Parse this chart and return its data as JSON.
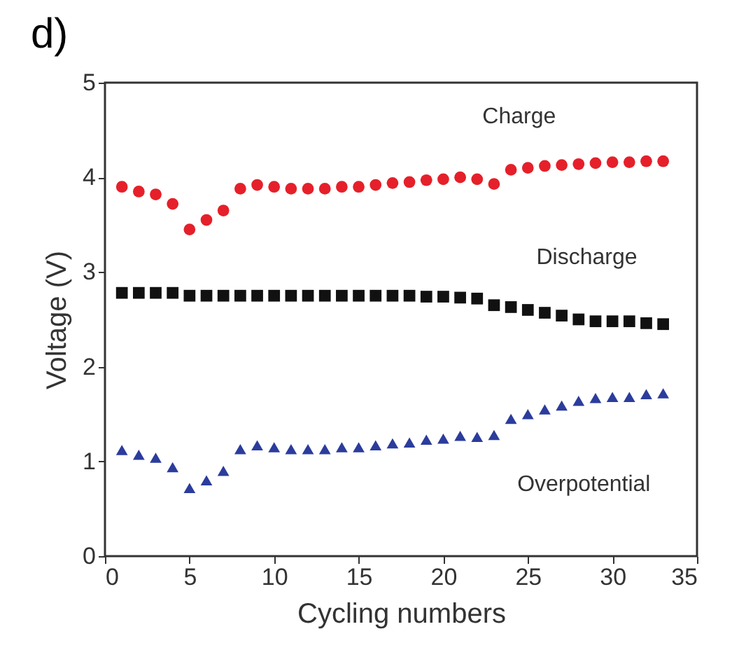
{
  "chart_data": {
    "type": "scatter",
    "xlabel": "Cycling numbers",
    "ylabel": "Voltage (V)",
    "annotations": [
      "d)"
    ],
    "x": [
      1,
      2,
      3,
      4,
      5,
      6,
      7,
      8,
      9,
      10,
      11,
      12,
      13,
      14,
      15,
      16,
      17,
      18,
      19,
      20,
      21,
      22,
      23,
      24,
      25,
      26,
      27,
      28,
      29,
      30,
      31,
      32,
      33
    ],
    "series": [
      {
        "name": "Charge",
        "color": "#e5202a",
        "marker": "circle",
        "values": [
          3.9,
          3.85,
          3.82,
          3.72,
          3.45,
          3.55,
          3.65,
          3.88,
          3.92,
          3.9,
          3.88,
          3.88,
          3.88,
          3.9,
          3.9,
          3.92,
          3.94,
          3.95,
          3.97,
          3.98,
          4.0,
          3.98,
          3.93,
          4.08,
          4.1,
          4.12,
          4.13,
          4.14,
          4.15,
          4.16,
          4.16,
          4.17,
          4.17
        ]
      },
      {
        "name": "Discharge",
        "color": "#111111",
        "marker": "square",
        "values": [
          2.78,
          2.78,
          2.78,
          2.78,
          2.75,
          2.75,
          2.75,
          2.75,
          2.75,
          2.75,
          2.75,
          2.75,
          2.75,
          2.75,
          2.75,
          2.75,
          2.75,
          2.75,
          2.74,
          2.74,
          2.73,
          2.72,
          2.65,
          2.63,
          2.6,
          2.57,
          2.54,
          2.5,
          2.48,
          2.48,
          2.48,
          2.46,
          2.45
        ]
      },
      {
        "name": "Overpotential",
        "color": "#2b3c9c",
        "marker": "triangle",
        "values": [
          1.12,
          1.07,
          1.04,
          0.94,
          0.72,
          0.8,
          0.9,
          1.13,
          1.17,
          1.15,
          1.13,
          1.13,
          1.13,
          1.15,
          1.15,
          1.17,
          1.19,
          1.2,
          1.23,
          1.24,
          1.27,
          1.26,
          1.28,
          1.45,
          1.5,
          1.55,
          1.59,
          1.64,
          1.67,
          1.68,
          1.68,
          1.71,
          1.72
        ]
      }
    ],
    "xlim": [
      0,
      35
    ],
    "xticks": [
      0,
      5,
      10,
      15,
      20,
      25,
      30,
      35
    ],
    "ylim": [
      0,
      5
    ],
    "yticks": [
      0,
      1,
      2,
      3,
      4,
      5
    ]
  }
}
